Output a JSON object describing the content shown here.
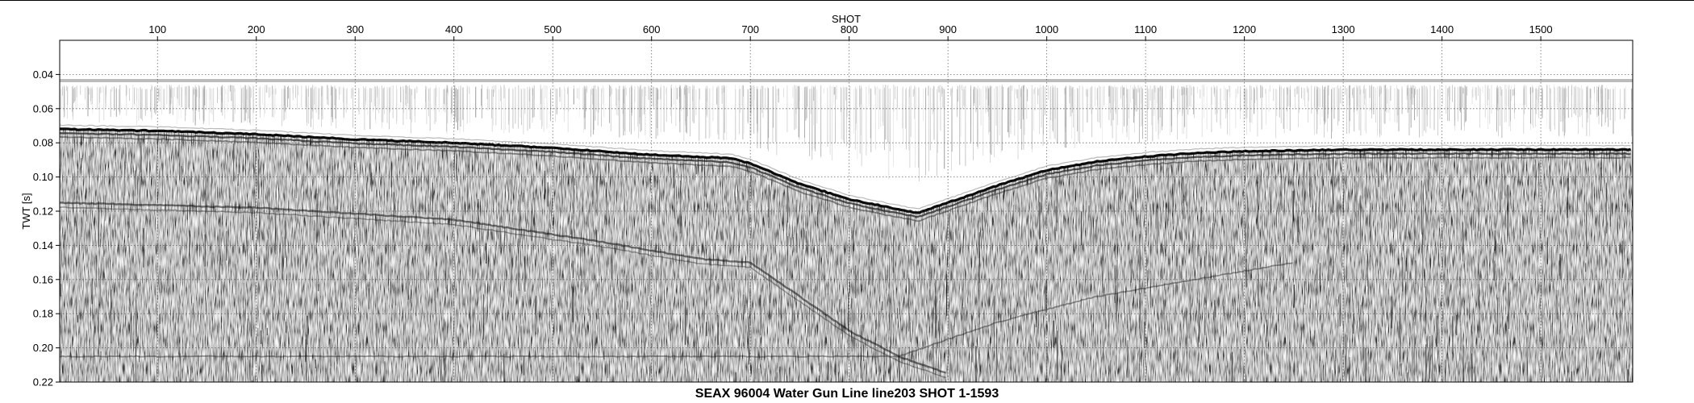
{
  "chart_data": {
    "type": "heatmap",
    "title": "SEAX 96004 Water Gun Line line203 SHOT 1-1593",
    "xlabel": "SHOT",
    "ylabel": "TWT [s]",
    "x_axis_position": "top",
    "xlim": [
      1,
      1593
    ],
    "ylim": [
      0.22,
      0.02
    ],
    "xticks": [
      100,
      200,
      300,
      400,
      500,
      600,
      700,
      800,
      900,
      1000,
      1100,
      1200,
      1300,
      1400,
      1500
    ],
    "xtick_labels": [
      "100",
      "200",
      "300",
      "400",
      "500",
      "600",
      "700",
      "800",
      "900",
      "1000",
      "1100",
      "1200",
      "1300",
      "1400",
      "1500"
    ],
    "yticks": [
      0.04,
      0.06,
      0.08,
      0.1,
      0.12,
      0.14,
      0.16,
      0.18,
      0.2,
      0.22
    ],
    "ytick_labels": [
      "0.04",
      "0.06",
      "0.08",
      "0.10",
      "0.12",
      "0.14",
      "0.16",
      "0.18",
      "0.20",
      "0.22"
    ],
    "grid": "dotted",
    "colormap": "grayscale",
    "seafloor_reflector": {
      "x": [
        1,
        100,
        200,
        300,
        400,
        500,
        600,
        680,
        700,
        750,
        800,
        850,
        870,
        900,
        950,
        1000,
        1050,
        1100,
        1150,
        1200,
        1300,
        1400,
        1500,
        1593
      ],
      "y": [
        0.072,
        0.073,
        0.075,
        0.078,
        0.08,
        0.083,
        0.087,
        0.089,
        0.092,
        0.104,
        0.113,
        0.119,
        0.121,
        0.115,
        0.105,
        0.096,
        0.091,
        0.088,
        0.086,
        0.085,
        0.084,
        0.084,
        0.084,
        0.084
      ]
    },
    "subbottom_reflector": {
      "x": [
        1,
        200,
        400,
        550,
        650,
        700,
        750,
        800,
        850,
        900
      ],
      "y": [
        0.115,
        0.118,
        0.125,
        0.138,
        0.148,
        0.15,
        0.17,
        0.19,
        0.205,
        0.215
      ]
    },
    "colors": {
      "trace_dark": "#111111",
      "background": "#ffffff"
    }
  }
}
